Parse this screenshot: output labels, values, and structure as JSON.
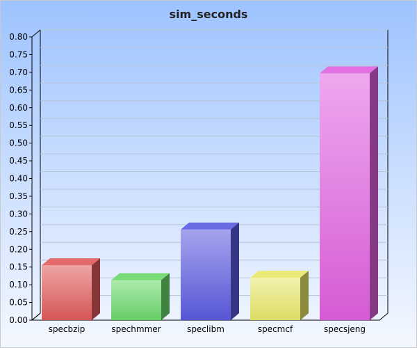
{
  "chart_data": {
    "type": "bar",
    "title": "sim_seconds",
    "xlabel": "",
    "ylabel": "",
    "categories": [
      "specbzip",
      "spechmmer",
      "speclibm",
      "specmcf",
      "specsjeng"
    ],
    "values": [
      0.155,
      0.113,
      0.256,
      0.12,
      0.697
    ],
    "ylim": [
      0,
      0.8
    ],
    "yticks": [
      "0.00",
      "0.05",
      "0.10",
      "0.15",
      "0.20",
      "0.25",
      "0.30",
      "0.35",
      "0.40",
      "0.45",
      "0.50",
      "0.55",
      "0.60",
      "0.65",
      "0.70",
      "0.75",
      "0.80"
    ],
    "grid": true,
    "bar_colors": [
      "#e05a5a",
      "#6ad86a",
      "#5a5ae0",
      "#e8e86a",
      "#e060e0"
    ]
  }
}
